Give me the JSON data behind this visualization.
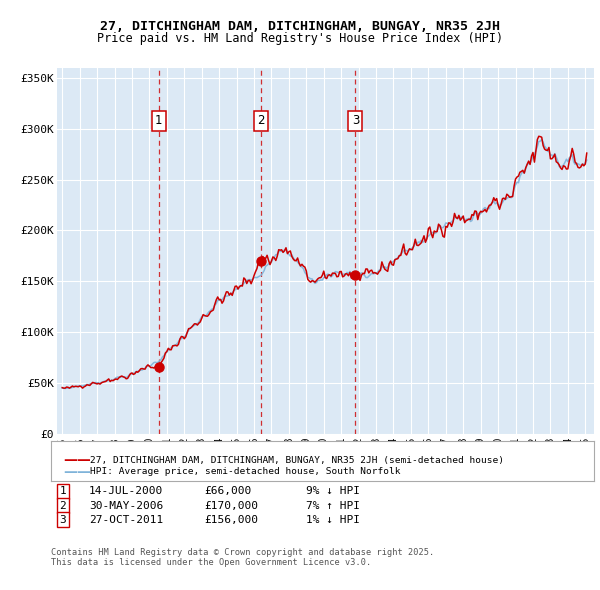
{
  "title_line1": "27, DITCHINGHAM DAM, DITCHINGHAM, BUNGAY, NR35 2JH",
  "title_line2": "Price paid vs. HM Land Registry's House Price Index (HPI)",
  "bg_color": "#dce9f5",
  "red_line_color": "#cc0000",
  "blue_line_color": "#7fb3d9",
  "sale_marker_color": "#cc0000",
  "vline_color": "#cc0000",
  "legend_label_red": "27, DITCHINGHAM DAM, DITCHINGHAM, BUNGAY, NR35 2JH (semi-detached house)",
  "legend_label_blue": "HPI: Average price, semi-detached house, South Norfolk",
  "sales": [
    {
      "label": "1",
      "date_str": "14-JUL-2000",
      "price": 66000,
      "pct": "9%",
      "dir": "↓",
      "x_year": 2000.54
    },
    {
      "label": "2",
      "date_str": "30-MAY-2006",
      "price": 170000,
      "pct": "7%",
      "dir": "↑",
      "x_year": 2006.41
    },
    {
      "label": "3",
      "date_str": "27-OCT-2011",
      "price": 156000,
      "pct": "1%",
      "dir": "↓",
      "x_year": 2011.82
    }
  ],
  "table_rows": [
    [
      "1",
      "14-JUL-2000",
      "£66,000",
      "9% ↓ HPI"
    ],
    [
      "2",
      "30-MAY-2006",
      "£170,000",
      "7% ↑ HPI"
    ],
    [
      "3",
      "27-OCT-2011",
      "£156,000",
      "1% ↓ HPI"
    ]
  ],
  "footer": "Contains HM Land Registry data © Crown copyright and database right 2025.\nThis data is licensed under the Open Government Licence v3.0.",
  "ylim": [
    0,
    360000
  ],
  "yticks": [
    0,
    50000,
    100000,
    150000,
    200000,
    250000,
    300000,
    350000
  ],
  "ytick_labels": [
    "£0",
    "£50K",
    "£100K",
    "£150K",
    "£200K",
    "£250K",
    "£300K",
    "£350K"
  ],
  "xlim_start": 1994.7,
  "xlim_end": 2025.5
}
